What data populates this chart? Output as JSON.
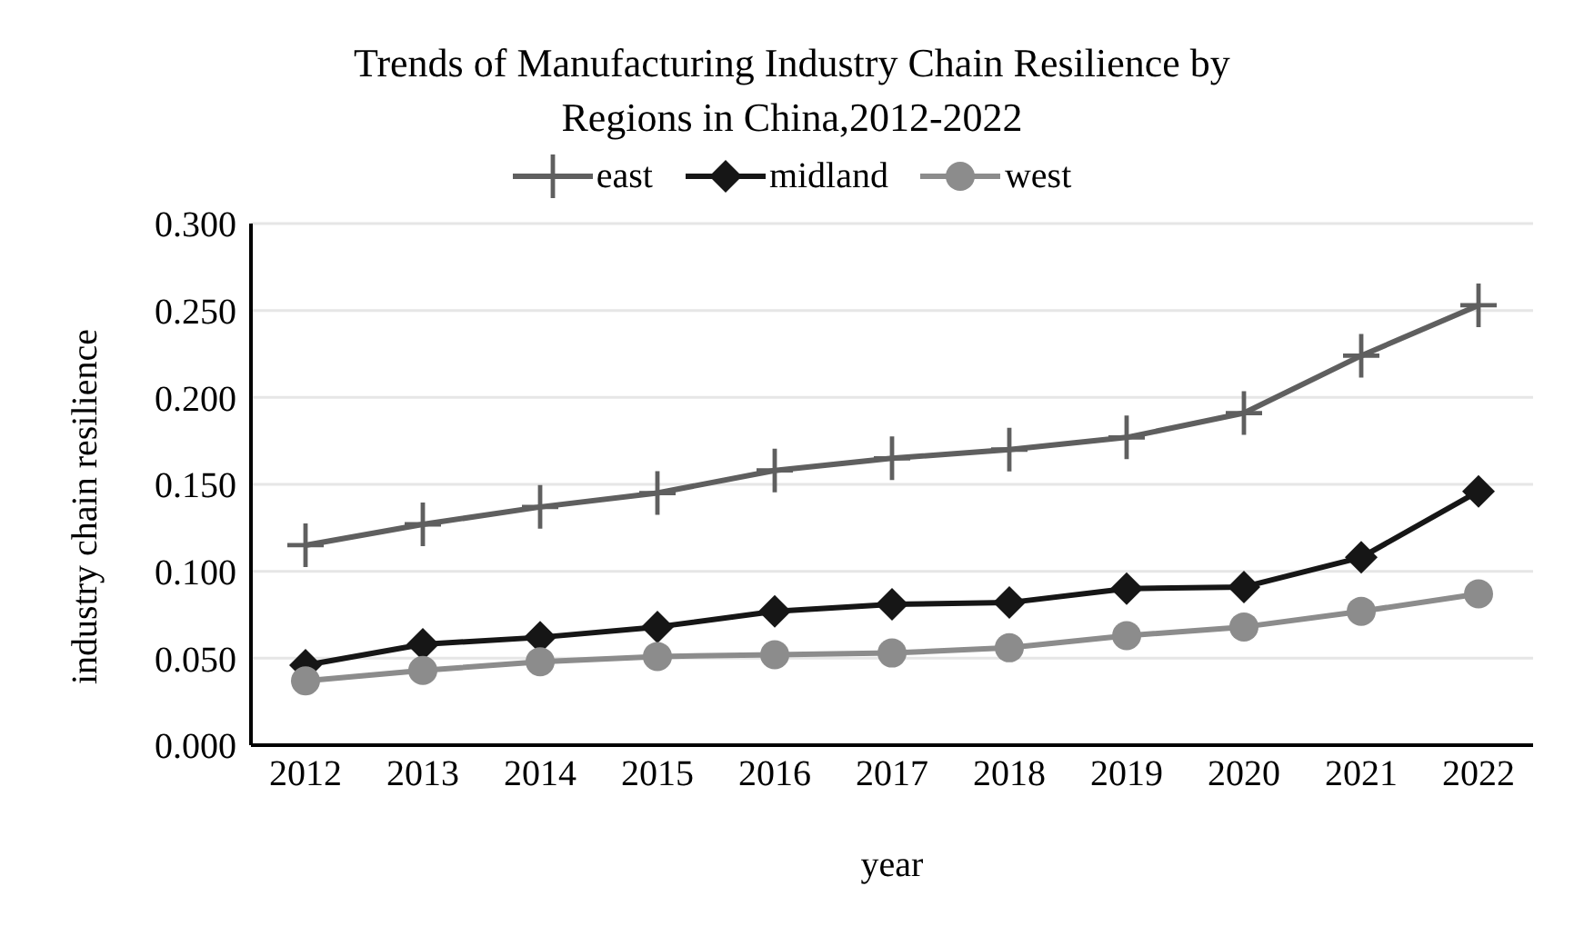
{
  "chart_data": {
    "type": "line",
    "title": "Trends of Manufacturing Industry Chain Resilience by Regions in China,2012-2022",
    "xlabel": "year",
    "ylabel": "industry chain resilience",
    "categories": [
      "2012",
      "2013",
      "2014",
      "2015",
      "2016",
      "2017",
      "2018",
      "2019",
      "2020",
      "2021",
      "2022"
    ],
    "series": [
      {
        "name": "east",
        "color": "#5f5f5f",
        "marker": "cross",
        "values": [
          0.115,
          0.127,
          0.137,
          0.145,
          0.158,
          0.165,
          0.17,
          0.177,
          0.191,
          0.224,
          0.253
        ]
      },
      {
        "name": "midland",
        "color": "#161616",
        "marker": "diamond",
        "values": [
          0.046,
          0.058,
          0.062,
          0.068,
          0.077,
          0.081,
          0.082,
          0.09,
          0.091,
          0.108,
          0.146
        ]
      },
      {
        "name": "west",
        "color": "#8c8c8c",
        "marker": "circle",
        "values": [
          0.037,
          0.043,
          0.048,
          0.051,
          0.052,
          0.053,
          0.056,
          0.063,
          0.068,
          0.077,
          0.087
        ]
      }
    ],
    "ylim": [
      0,
      0.3
    ],
    "yticks": [
      {
        "value": 0,
        "label": "0.000"
      },
      {
        "value": 0.05,
        "label": "0.050"
      },
      {
        "value": 0.1,
        "label": "0.100"
      },
      {
        "value": 0.15,
        "label": "0.150"
      },
      {
        "value": 0.2,
        "label": "0.200"
      },
      {
        "value": 0.25,
        "label": "0.250"
      },
      {
        "value": 0.3,
        "label": "0.300"
      }
    ],
    "grid": "y",
    "legend": "top",
    "line_style": "solid"
  }
}
